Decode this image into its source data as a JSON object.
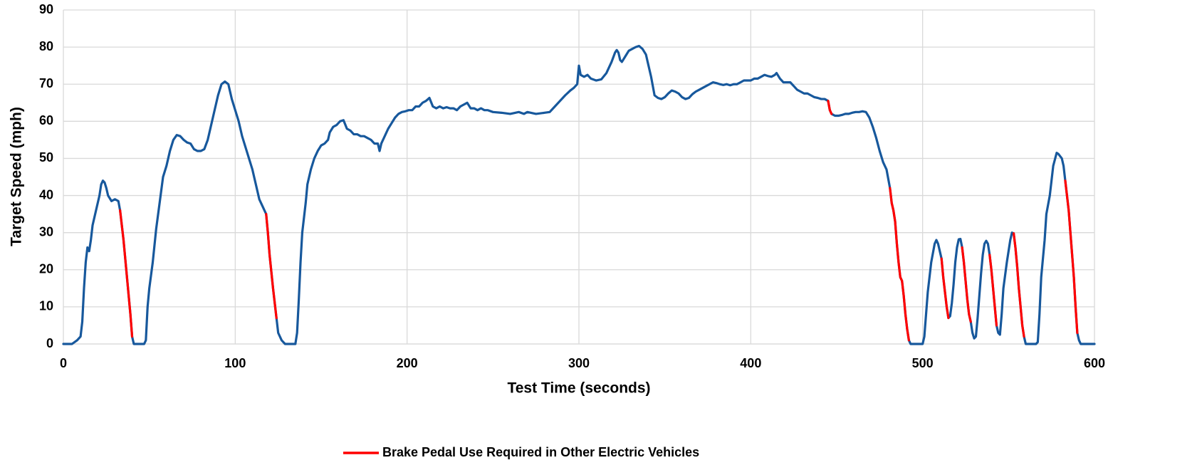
{
  "chart_data": {
    "type": "line",
    "xlabel": "Test Time (seconds)",
    "ylabel": "Target Speed (mph)",
    "xlim": [
      0,
      600
    ],
    "xticks": [
      0,
      100,
      200,
      300,
      400,
      500,
      600
    ],
    "ylim": [
      0,
      90
    ],
    "yticks": [
      0,
      10,
      20,
      30,
      40,
      50,
      60,
      70,
      80,
      90
    ],
    "grid": true,
    "legend": "bottom",
    "series": [
      {
        "color": "#17589c",
        "x": [
          0,
          5,
          8,
          10,
          11,
          12,
          13,
          14,
          15,
          16,
          17,
          19,
          21,
          22,
          23,
          24,
          25,
          26,
          28,
          30,
          32,
          33,
          35,
          37,
          39,
          40,
          41,
          47,
          48,
          49,
          50,
          52,
          54,
          56,
          58,
          60,
          62,
          64,
          66,
          68,
          70,
          72,
          74,
          76,
          78,
          80,
          82,
          84,
          86,
          88,
          90,
          92,
          94,
          96,
          98,
          100,
          102,
          104,
          106,
          108,
          110,
          112,
          114,
          116,
          118,
          119,
          120,
          122,
          124,
          125,
          127,
          129,
          135,
          136,
          137,
          138,
          139,
          141,
          142,
          144,
          146,
          148,
          150,
          152,
          154,
          155,
          157,
          159,
          161,
          163,
          165,
          167,
          169,
          171,
          173,
          175,
          177,
          179,
          181,
          183,
          184,
          185,
          187,
          189,
          191,
          193,
          195,
          197,
          199,
          201,
          203,
          205,
          207,
          209,
          211,
          213,
          215,
          217,
          219,
          221,
          223,
          225,
          227,
          229,
          231,
          233,
          235,
          237,
          239,
          241,
          243,
          245,
          247,
          250,
          255,
          260,
          265,
          268,
          270,
          275,
          280,
          283,
          286,
          289,
          292,
          295,
          297,
          299,
          300,
          301,
          303,
          305,
          307,
          310,
          313,
          316,
          319,
          321,
          322,
          323,
          324,
          325,
          327,
          329,
          331,
          333,
          335,
          337,
          339,
          340,
          342,
          344,
          346,
          348,
          350,
          352,
          354,
          356,
          358,
          360,
          362,
          364,
          366,
          368,
          370,
          372,
          374,
          376,
          378,
          380,
          382,
          384,
          386,
          388,
          390,
          392,
          394,
          396,
          398,
          400,
          402,
          404,
          406,
          408,
          410,
          412,
          414,
          415,
          417,
          419,
          421,
          423,
          425,
          427,
          429,
          431,
          433,
          435,
          437,
          439,
          441,
          443,
          445,
          446,
          447,
          449,
          451,
          453,
          455,
          457,
          459,
          461,
          463,
          465,
          467,
          469,
          471,
          473,
          475,
          477,
          479,
          481,
          482,
          483,
          484,
          485,
          486,
          487,
          488,
          489,
          490,
          491,
          492,
          493,
          500,
          501,
          502,
          503,
          505,
          507,
          508,
          509,
          511,
          512,
          514,
          515,
          516,
          517,
          518,
          519,
          520,
          521,
          522,
          523,
          524,
          525,
          526,
          527,
          528,
          529,
          530,
          531,
          532,
          533,
          534,
          535,
          536,
          537,
          538,
          539,
          540,
          541,
          542,
          543,
          544,
          545,
          546,
          547,
          549,
          551,
          552,
          553,
          554,
          555,
          556,
          557,
          558,
          559,
          560,
          566,
          567,
          568,
          569,
          571,
          572,
          574,
          575,
          576,
          578,
          579,
          581,
          582,
          583,
          585,
          586,
          587,
          588,
          589,
          590,
          591,
          592,
          600
        ],
        "values": [
          0,
          0,
          1,
          2,
          6,
          15,
          22,
          26,
          25,
          28,
          32,
          36,
          40,
          43,
          44,
          43.5,
          42,
          40,
          38.5,
          39,
          38.5,
          36,
          28,
          18,
          8,
          2,
          0,
          0,
          1,
          10,
          15,
          22,
          31,
          38,
          45,
          48,
          52,
          55,
          56.3,
          56,
          55,
          54.3,
          54,
          52.5,
          52,
          52,
          52.5,
          55,
          59,
          63,
          67,
          70,
          70.7,
          70,
          66,
          63,
          60,
          56,
          53,
          50,
          47,
          43,
          39,
          37,
          35,
          30,
          24,
          15,
          7,
          3,
          1,
          0,
          0,
          3,
          12,
          22,
          30,
          38,
          43,
          47,
          50,
          52,
          53.5,
          54,
          55,
          57,
          58.5,
          59,
          60,
          60.3,
          58,
          57.5,
          56.5,
          56.5,
          56,
          56,
          55.5,
          55,
          54,
          54,
          52,
          54,
          56,
          58,
          59.5,
          61,
          62,
          62.5,
          62.7,
          63,
          63,
          64,
          64,
          65,
          65.5,
          66.3,
          64,
          63.5,
          64,
          63.5,
          63.8,
          63.5,
          63.5,
          63,
          64,
          64.5,
          65,
          63.5,
          63.5,
          63,
          63.5,
          63,
          63,
          62.5,
          62.3,
          62,
          62.5,
          62,
          62.5,
          62,
          62.3,
          62.5,
          64,
          65.5,
          67,
          68.3,
          69,
          70,
          75,
          72.5,
          72,
          72.5,
          71.5,
          71,
          71.3,
          73,
          76,
          78.5,
          79.2,
          78.5,
          76.5,
          76,
          77.5,
          79,
          79.5,
          80,
          80.3,
          79.5,
          78,
          76,
          72,
          67,
          66.3,
          66,
          66.5,
          67.5,
          68.3,
          68,
          67.5,
          66.5,
          66,
          66.3,
          67.3,
          68,
          68.5,
          69,
          69.5,
          70,
          70.5,
          70.3,
          70,
          69.8,
          70,
          69.7,
          70,
          70,
          70.5,
          71,
          71,
          71,
          71.5,
          71.5,
          72,
          72.5,
          72.2,
          72,
          72.5,
          73,
          71.5,
          70.5,
          70.5,
          70.5,
          69.5,
          68.5,
          68,
          67.5,
          67.5,
          67,
          66.5,
          66.3,
          66,
          66,
          65.5,
          63,
          62,
          61.5,
          61.5,
          61.7,
          62,
          62,
          62.3,
          62.5,
          62.5,
          62.7,
          62.5,
          61,
          58.5,
          55.5,
          52,
          49,
          47,
          42,
          38,
          36,
          33,
          27,
          22,
          18,
          17,
          13,
          8,
          4,
          1,
          0,
          0,
          2,
          8,
          14,
          22,
          27,
          28,
          27,
          23,
          18,
          10,
          7,
          7.5,
          11,
          16,
          22,
          26,
          28.2,
          28.3,
          26,
          22,
          17,
          12,
          8,
          6,
          3,
          1.5,
          2,
          7,
          13,
          19,
          24,
          27,
          27.8,
          27,
          24,
          20,
          15,
          10,
          5,
          3,
          2.5,
          8,
          15,
          22,
          28,
          30,
          29.8,
          26,
          21,
          15,
          10,
          5,
          2,
          0,
          0,
          0.5,
          8,
          18,
          28,
          35,
          40,
          44,
          48,
          51.5,
          51.2,
          50,
          48,
          44,
          36,
          30,
          24,
          18,
          10,
          3,
          1,
          0,
          0
        ]
      },
      {
        "name": "Brake Pedal Use Required in Other Electric Vehicles",
        "color": "#ff0000",
        "x": [
          33,
          35,
          37,
          39,
          40,
          null,
          118,
          119,
          120,
          122,
          124,
          null,
          445,
          446,
          447,
          null,
          481,
          482,
          483,
          484,
          485,
          486,
          487,
          488,
          489,
          490,
          491,
          492,
          null,
          511,
          512,
          514,
          515,
          null,
          523,
          524,
          525,
          526,
          527,
          528,
          null,
          539,
          540,
          541,
          542,
          543,
          null,
          553,
          554,
          555,
          556,
          557,
          558,
          559,
          null,
          583,
          585,
          586,
          587,
          588,
          589,
          590
        ],
        "values": [
          36,
          28,
          18,
          8,
          2,
          null,
          35,
          30,
          24,
          15,
          7,
          null,
          65.5,
          63,
          62,
          null,
          42,
          38,
          36,
          33,
          27,
          22,
          18,
          17,
          13,
          8,
          4,
          1,
          null,
          23,
          18,
          10,
          7,
          null,
          26,
          22,
          17,
          12,
          8,
          6,
          null,
          24,
          20,
          15,
          10,
          5,
          null,
          29.8,
          26,
          21,
          15,
          10,
          5,
          2,
          null,
          44,
          36,
          30,
          24,
          18,
          10,
          3
        ]
      }
    ]
  }
}
